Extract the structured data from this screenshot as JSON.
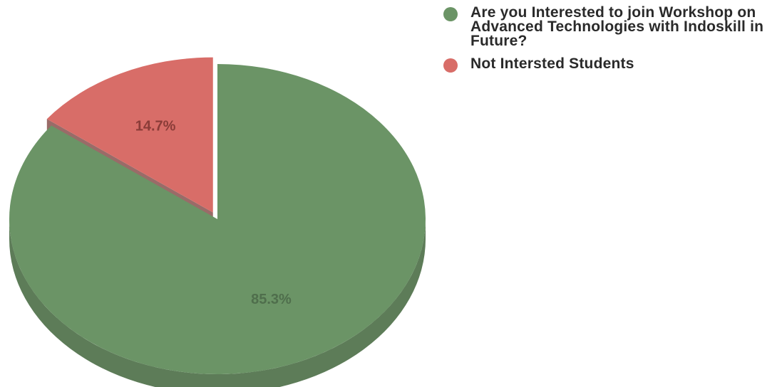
{
  "chart_data": {
    "type": "pie",
    "title": "",
    "legend_position": "top-right",
    "slices": [
      {
        "name": "Are you Interested to join Workshop on Advanced Technologies with Indoskill in Future?",
        "value": 85.3,
        "label": "85.3%",
        "color": "#6b9466",
        "side_color": "#5d7c58",
        "label_color": "#4f6e4c"
      },
      {
        "name": "Not Intersted Students",
        "value": 14.7,
        "label": "14.7%",
        "color": "#d86d68",
        "side_color": "#9a6b68",
        "label_color": "#8a3c38"
      }
    ],
    "style": "3d-exploded"
  }
}
